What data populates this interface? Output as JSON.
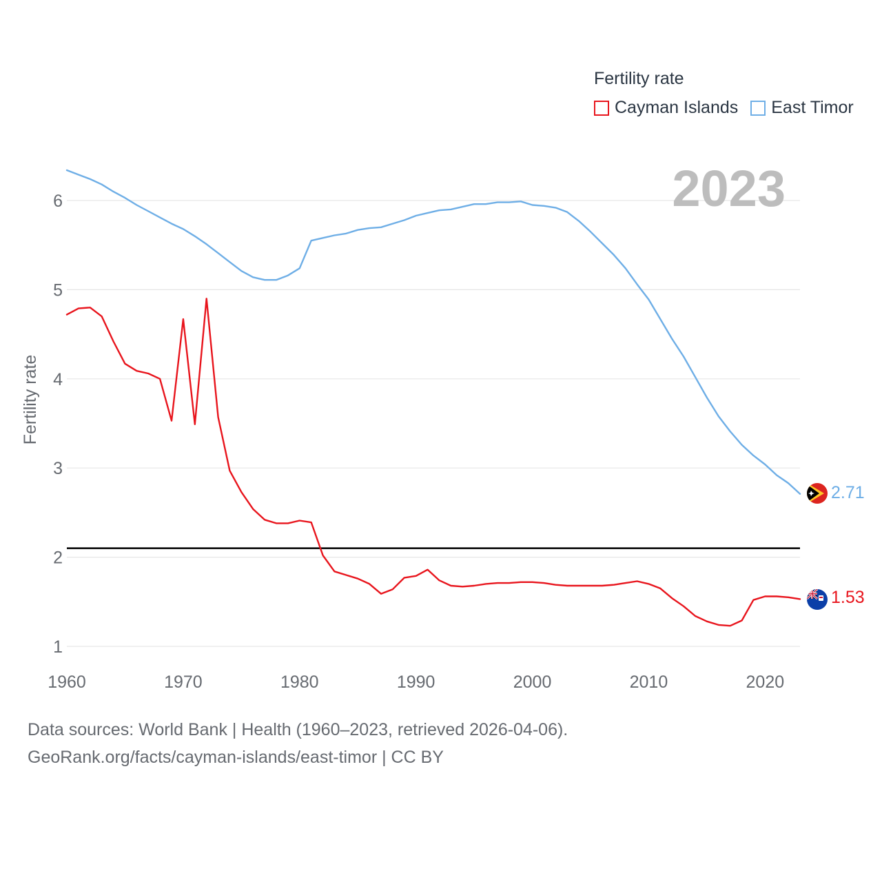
{
  "legend": {
    "title": "Fertility rate",
    "items": [
      {
        "label": "Cayman Islands",
        "color": "#e8141c"
      },
      {
        "label": "East Timor",
        "color": "#6eaee6"
      }
    ]
  },
  "year_label": "2023",
  "footer": {
    "line1": "Data sources: World Bank | Health (1960–2023, retrieved 2026-04-06).",
    "line2": "GeoRank.org/facts/cayman-islands/east-timor | CC BY"
  },
  "end_labels": {
    "east_timor": "2.71",
    "cayman_islands": "1.53"
  },
  "chart_data": {
    "type": "line",
    "title": "Fertility rate",
    "xlabel": "",
    "ylabel": "Fertility rate",
    "xlim": [
      1960,
      2023
    ],
    "ylim": [
      0.9,
      6.35
    ],
    "x_ticks": [
      1960,
      1970,
      1980,
      1990,
      2000,
      2010,
      2020
    ],
    "y_ticks": [
      1,
      2,
      3,
      4,
      5,
      6
    ],
    "grid": true,
    "reference_line": {
      "y": 2.1,
      "color": "#000000"
    },
    "x": [
      1960,
      1961,
      1962,
      1963,
      1964,
      1965,
      1966,
      1967,
      1968,
      1969,
      1970,
      1971,
      1972,
      1973,
      1974,
      1975,
      1976,
      1977,
      1978,
      1979,
      1980,
      1981,
      1982,
      1983,
      1984,
      1985,
      1986,
      1987,
      1988,
      1989,
      1990,
      1991,
      1992,
      1993,
      1994,
      1995,
      1996,
      1997,
      1998,
      1999,
      2000,
      2001,
      2002,
      2003,
      2004,
      2005,
      2006,
      2007,
      2008,
      2009,
      2010,
      2011,
      2012,
      2013,
      2014,
      2015,
      2016,
      2017,
      2018,
      2019,
      2020,
      2021,
      2022,
      2023
    ],
    "series": [
      {
        "name": "Cayman Islands",
        "color": "#e8141c",
        "values": [
          4.72,
          4.79,
          4.8,
          4.7,
          4.42,
          4.17,
          4.09,
          4.06,
          4.0,
          3.53,
          4.67,
          3.49,
          4.9,
          3.57,
          2.97,
          2.73,
          2.54,
          2.42,
          2.38,
          2.38,
          2.41,
          2.39,
          2.02,
          1.84,
          1.8,
          1.76,
          1.7,
          1.59,
          1.64,
          1.77,
          1.79,
          1.86,
          1.74,
          1.68,
          1.67,
          1.68,
          1.7,
          1.71,
          1.71,
          1.72,
          1.72,
          1.71,
          1.69,
          1.68,
          1.68,
          1.68,
          1.68,
          1.69,
          1.71,
          1.73,
          1.7,
          1.65,
          1.54,
          1.45,
          1.34,
          1.28,
          1.24,
          1.23,
          1.29,
          1.52,
          1.56,
          1.56,
          1.55,
          1.53
        ]
      },
      {
        "name": "East Timor",
        "color": "#6eaee6",
        "values": [
          6.34,
          6.29,
          6.24,
          6.18,
          6.1,
          6.03,
          5.95,
          5.88,
          5.81,
          5.74,
          5.68,
          5.6,
          5.51,
          5.41,
          5.31,
          5.21,
          5.14,
          5.11,
          5.11,
          5.16,
          5.24,
          5.55,
          5.58,
          5.61,
          5.63,
          5.67,
          5.69,
          5.7,
          5.74,
          5.78,
          5.83,
          5.86,
          5.89,
          5.9,
          5.93,
          5.96,
          5.96,
          5.98,
          5.98,
          5.99,
          5.95,
          5.94,
          5.92,
          5.87,
          5.77,
          5.65,
          5.52,
          5.39,
          5.24,
          5.06,
          4.89,
          4.67,
          4.45,
          4.25,
          4.02,
          3.79,
          3.58,
          3.41,
          3.26,
          3.14,
          3.04,
          2.92,
          2.83,
          2.71
        ]
      }
    ]
  }
}
